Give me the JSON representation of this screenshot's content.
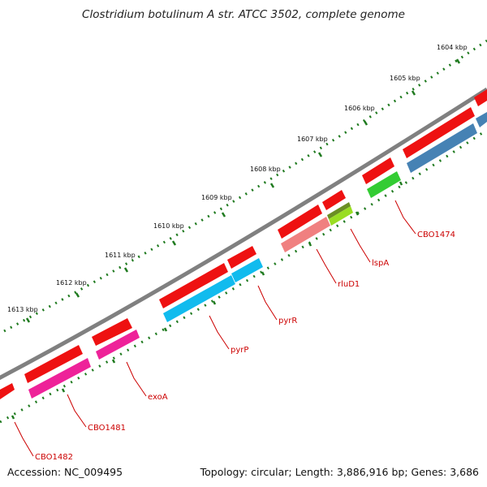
{
  "title": "Clostridium botulinum A str. ATCC 3502, complete genome",
  "footer": {
    "accession": "Accession: NC_009495",
    "summary": "Topology: circular; Length: 3,886,916 bp; Genes: 3,686"
  },
  "scale_labels": [
    "1604 kbp",
    "1605 kbp",
    "1606 kbp",
    "1607 kbp",
    "1608 kbp",
    "1609 kbp",
    "1610 kbp",
    "1611 kbp",
    "1612 kbp",
    "1613 kbp"
  ],
  "gene_labels": [
    "CBO1474",
    "lspA",
    "rluD1",
    "pyrR",
    "pyrP",
    "exoA",
    "CBO1481",
    "CBO1482"
  ],
  "colors": {
    "backbone": "#808080",
    "ticks": "#1f7a1f",
    "forward_gene": "#ee1111",
    "label": "#cc0000",
    "blue": "#4682b4",
    "green": "#33cc33",
    "yellow_green": "#99dd22",
    "salmon": "#f08080",
    "cyan": "#11bbee",
    "magenta": "#ee2299",
    "olive": "#6b8e23"
  }
}
